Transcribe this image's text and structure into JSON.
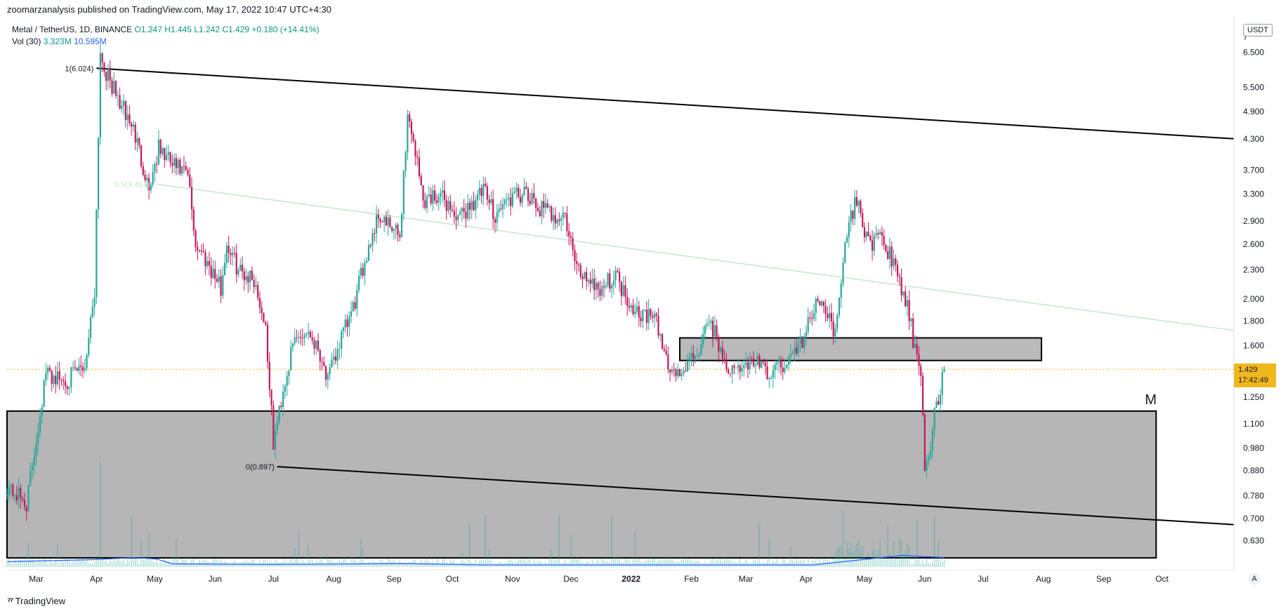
{
  "header": {
    "published": "zoomarzanalysis published on TradingView.com, May 17, 2022 10:47 UTC+4:30"
  },
  "legend": {
    "symbol": "Metal / TetherUS, 1D, BINANCE",
    "open": "O1.247",
    "high": "H1.445",
    "low": "L1.242",
    "close": "C1.429",
    "change": "+0.180 (+14.41%)",
    "vol_label": "Vol (30)",
    "vol_value": "3.323M",
    "vol_ma": "10.595M"
  },
  "currency": "USDT",
  "price_tag": {
    "price": "1.429",
    "countdown": "17:42:49"
  },
  "footer": {
    "brand": "TradingView",
    "auto_button": "A"
  },
  "colors": {
    "up": "#26a69a",
    "down": "#c2185b",
    "zone": "#b2b2b2",
    "fib_mid": "#c8e6c9",
    "vol_ma": "#2962ff",
    "current_price": "#f0b81d"
  },
  "chart_data": {
    "type": "candlestick",
    "scale": "log",
    "ylim": [
      0.58,
      7.3
    ],
    "y_ticks": [
      7,
      6.5,
      5.5,
      4.9,
      4.3,
      3.7,
      3.3,
      2.9,
      2.6,
      2.3,
      2.0,
      1.8,
      1.6,
      1.429,
      1.25,
      1.1,
      0.98,
      0.88,
      0.78,
      0.7,
      0.63
    ],
    "y_tick_labels": [
      "7",
      "6.500",
      "5.500",
      "4.900",
      "4.300",
      "3.700",
      "3.300",
      "2.900",
      "2.600",
      "2.300",
      "2.000",
      "1.800",
      "1.600",
      "1.429",
      "1.250",
      "1.100",
      "0.980",
      "0.880",
      "0.780",
      "0.700",
      "0.630"
    ],
    "x_ticks": [
      "Mar",
      "Apr",
      "May",
      "Jun",
      "Jul",
      "Aug",
      "Sep",
      "Oct",
      "Nov",
      "Dec",
      "2022",
      "Feb",
      "Mar",
      "Apr",
      "May",
      "Jun",
      "Jul",
      "Aug",
      "Sep",
      "Oct"
    ],
    "x_tick_days": [
      0,
      31,
      61,
      92,
      122,
      153,
      184,
      214,
      245,
      275,
      306,
      337,
      365,
      396,
      426,
      457,
      487,
      518,
      549,
      579
    ],
    "x_start_day": -15,
    "x_end_day": 616,
    "price_path": [
      [
        -15,
        0.82
      ],
      [
        -5,
        0.75
      ],
      [
        5,
        1.4
      ],
      [
        15,
        1.35
      ],
      [
        25,
        1.45
      ],
      [
        30,
        2.1
      ],
      [
        33,
        6.5
      ],
      [
        36,
        5.9
      ],
      [
        42,
        5.2
      ],
      [
        50,
        4.5
      ],
      [
        58,
        3.4
      ],
      [
        63,
        4.1
      ],
      [
        70,
        3.8
      ],
      [
        78,
        3.6
      ],
      [
        82,
        2.6
      ],
      [
        88,
        2.4
      ],
      [
        95,
        2.1
      ],
      [
        98,
        2.6
      ],
      [
        104,
        2.3
      ],
      [
        112,
        2.2
      ],
      [
        118,
        1.75
      ],
      [
        122,
        1.0
      ],
      [
        127,
        1.3
      ],
      [
        133,
        1.65
      ],
      [
        140,
        1.72
      ],
      [
        146,
        1.55
      ],
      [
        150,
        1.35
      ],
      [
        156,
        1.62
      ],
      [
        163,
        1.9
      ],
      [
        170,
        2.5
      ],
      [
        176,
        3.0
      ],
      [
        182,
        2.8
      ],
      [
        187,
        2.7
      ],
      [
        191,
        4.8
      ],
      [
        194,
        4.3
      ],
      [
        199,
        3.2
      ],
      [
        206,
        3.3
      ],
      [
        212,
        3.15
      ],
      [
        217,
        2.9
      ],
      [
        222,
        3.1
      ],
      [
        230,
        3.35
      ],
      [
        236,
        3.0
      ],
      [
        242,
        3.2
      ],
      [
        250,
        3.3
      ],
      [
        258,
        3.1
      ],
      [
        265,
        3.0
      ],
      [
        272,
        2.95
      ],
      [
        278,
        2.3
      ],
      [
        285,
        2.2
      ],
      [
        290,
        2.1
      ],
      [
        298,
        2.25
      ],
      [
        304,
        2.0
      ],
      [
        310,
        1.88
      ],
      [
        318,
        1.82
      ],
      [
        326,
        1.42
      ],
      [
        332,
        1.4
      ],
      [
        340,
        1.55
      ],
      [
        347,
        1.8
      ],
      [
        352,
        1.55
      ],
      [
        358,
        1.4
      ],
      [
        364,
        1.45
      ],
      [
        370,
        1.5
      ],
      [
        376,
        1.38
      ],
      [
        382,
        1.45
      ],
      [
        388,
        1.5
      ],
      [
        394,
        1.65
      ],
      [
        400,
        1.9
      ],
      [
        405,
        2.0
      ],
      [
        410,
        1.7
      ],
      [
        414,
        2.2
      ],
      [
        418,
        2.9
      ],
      [
        422,
        3.2
      ],
      [
        426,
        2.8
      ],
      [
        430,
        2.6
      ],
      [
        435,
        2.7
      ],
      [
        440,
        2.4
      ],
      [
        445,
        2.1
      ],
      [
        449,
        1.85
      ],
      [
        452,
        1.55
      ],
      [
        455,
        1.35
      ],
      [
        457,
        0.9
      ],
      [
        460,
        1.0
      ],
      [
        462,
        1.15
      ],
      [
        465,
        1.3
      ],
      [
        467,
        1.429
      ]
    ],
    "volume_ma_path": [
      [
        -15,
        0.25
      ],
      [
        30,
        0.35
      ],
      [
        50,
        0.45
      ],
      [
        62,
        0.38
      ],
      [
        70,
        0.15
      ],
      [
        120,
        0.12
      ],
      [
        190,
        0.16
      ],
      [
        230,
        0.1
      ],
      [
        400,
        0.1
      ],
      [
        420,
        0.3
      ],
      [
        445,
        0.55
      ],
      [
        467,
        0.45
      ]
    ],
    "annotations": {
      "fib_top_label": "1(6.024)",
      "fib_top_value": 6.024,
      "fib_top_day": 31,
      "fib_mid_label": "0.5(3.461)",
      "fib_mid_value": 3.461,
      "fib_bottom_label": "0(0.897)",
      "fib_bottom_value": 0.897,
      "fib_bottom_day": 124,
      "marker": "M"
    },
    "lines": {
      "upper_trend": {
        "from": [
          31,
          6.024
        ],
        "to": [
          616,
          4.3
        ]
      },
      "lower_trend": {
        "from": [
          124,
          0.897
        ],
        "to": [
          616,
          0.68
        ]
      },
      "mid_trend": {
        "from": [
          62,
          3.461
        ],
        "to": [
          616,
          1.72
        ]
      }
    },
    "zones": {
      "upper": {
        "from_day": 331,
        "to_day": 517,
        "low": 1.49,
        "high": 1.66
      },
      "lower": {
        "from_day": -15,
        "to_day": 576,
        "low": 0.58,
        "high": 1.17
      }
    },
    "current_price": 1.429
  }
}
